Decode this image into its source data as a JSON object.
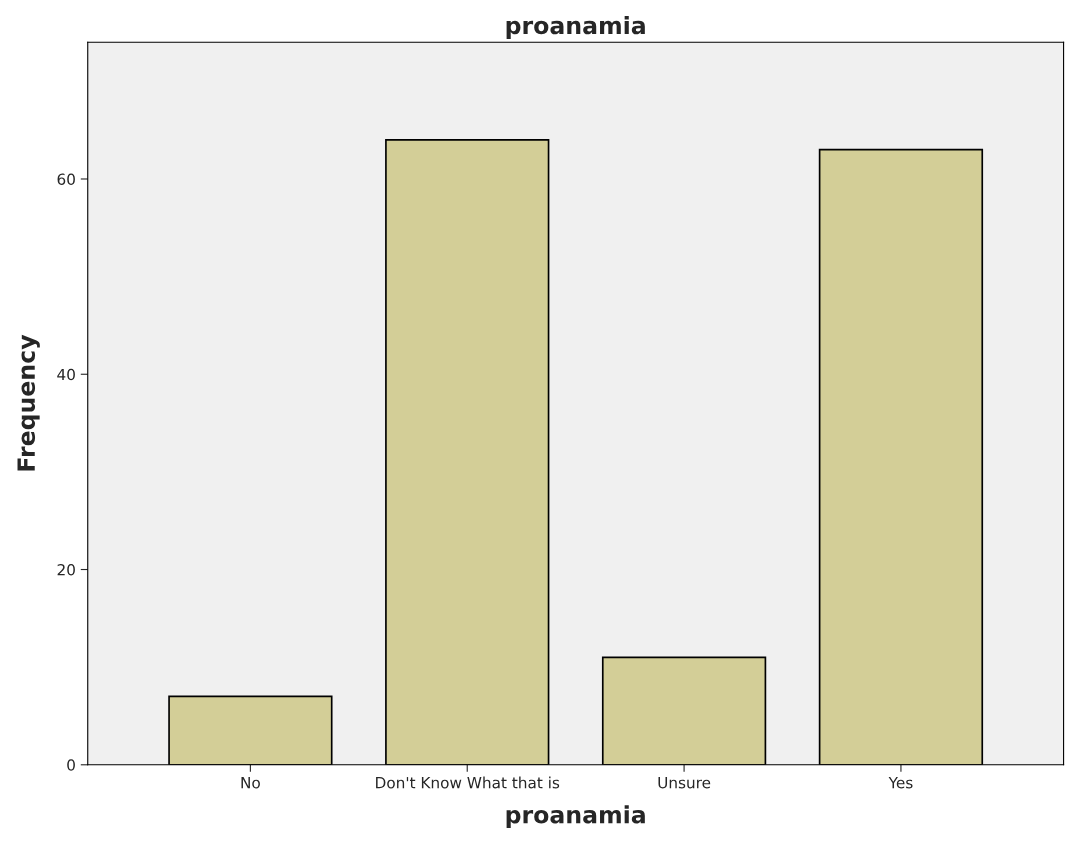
{
  "chart_data": {
    "type": "bar",
    "title": "proanamia",
    "xlabel": "proanamia",
    "ylabel": "Frequency",
    "categories": [
      "No",
      "Don't Know What that is",
      "Unsure",
      "Yes"
    ],
    "values": [
      7,
      64,
      11,
      63
    ],
    "color": "#d3ce97",
    "ylim": [
      0,
      74
    ],
    "yticks": [
      0,
      20,
      40,
      60
    ],
    "grid": false,
    "legend": false
  }
}
